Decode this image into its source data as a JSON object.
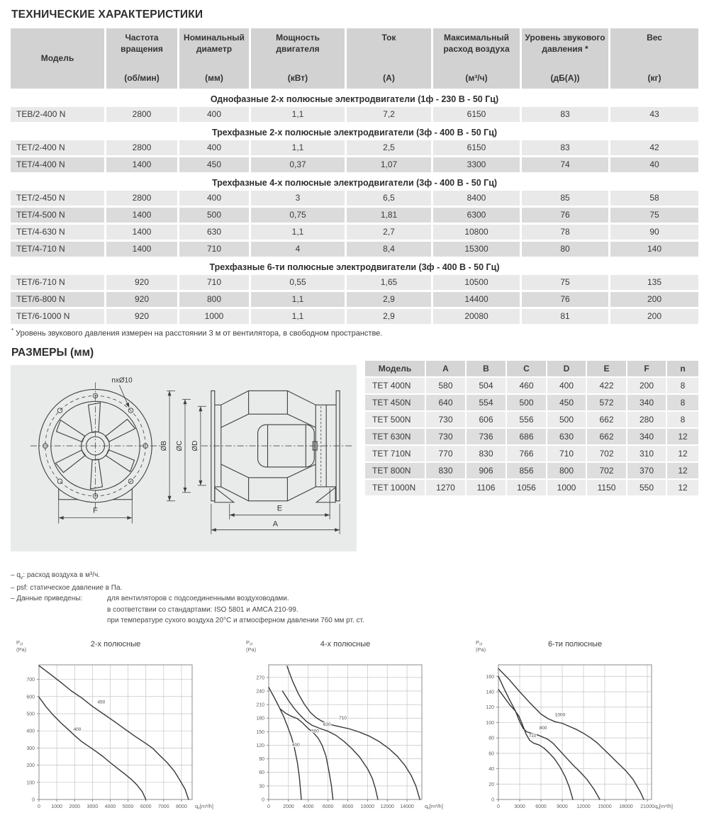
{
  "page": {
    "title": "ТЕХНИЧЕСКИЕ ХАРАКТЕРИСТИКИ",
    "footnote_star": "*",
    "footnote_text": " Уровень звукового давления измерен на расстоянии 3 м от вентилятора, в свободном пространстве.",
    "dimensions_heading": "РАЗМЕРЫ (мм)"
  },
  "spec_table": {
    "headers": [
      {
        "name": "Модель",
        "unit": ""
      },
      {
        "name": "Частота вращения",
        "unit": "(об/мин)"
      },
      {
        "name": "Номинальный диаметр",
        "unit": "(мм)"
      },
      {
        "name": "Мощность двигателя",
        "unit": "(кВт)"
      },
      {
        "name": "Ток",
        "unit": "(А)"
      },
      {
        "name": "Максимальный расход воздуха",
        "unit": "(м³/ч)"
      },
      {
        "name": "Уровень звукового давления *",
        "unit": "(дБ(А))"
      },
      {
        "name": "Вес",
        "unit": "(кг)"
      }
    ],
    "sections": [
      {
        "title": "Однофазные 2-х полюсные электродвигатели (1ф - 230 В - 50 Гц)",
        "rows": [
          [
            "TEB/2-400 N",
            "2800",
            "400",
            "1,1",
            "7,2",
            "6150",
            "83",
            "43"
          ]
        ]
      },
      {
        "title": "Трехфазные 2-х полюсные электродвигатели (3ф - 400 В - 50 Гц)",
        "rows": [
          [
            "TET/2-400 N",
            "2800",
            "400",
            "1,1",
            "2,5",
            "6150",
            "83",
            "42"
          ],
          [
            "TET/4-400 N",
            "1400",
            "450",
            "0,37",
            "1,07",
            "3300",
            "74",
            "40"
          ]
        ]
      },
      {
        "title": "Трехфазные 4-х полюсные электродвигатели (3ф - 400 В - 50 Гц)",
        "rows": [
          [
            "TET/2-450 N",
            "2800",
            "400",
            "3",
            "6,5",
            "8400",
            "85",
            "58"
          ],
          [
            "TET/4-500 N",
            "1400",
            "500",
            "0,75",
            "1,81",
            "6300",
            "76",
            "75"
          ],
          [
            "TET/4-630 N",
            "1400",
            "630",
            "1,1",
            "2,7",
            "10800",
            "78",
            "90"
          ],
          [
            "TET/4-710 N",
            "1400",
            "710",
            "4",
            "8,4",
            "15300",
            "80",
            "140"
          ]
        ]
      },
      {
        "title": "Трехфазные 6-ти полюсные электродвигатели (3ф - 400 В - 50 Гц)",
        "rows": [
          [
            "TET/6-710 N",
            "920",
            "710",
            "0,55",
            "1,65",
            "10500",
            "75",
            "135"
          ],
          [
            "TET/6-800 N",
            "920",
            "800",
            "1,1",
            "2,9",
            "14400",
            "76",
            "200"
          ],
          [
            "TET/6-1000 N",
            "920",
            "1000",
            "1,1",
            "2,9",
            "20080",
            "81",
            "200"
          ]
        ]
      }
    ]
  },
  "dim_table": {
    "headers": [
      "Модель",
      "A",
      "B",
      "C",
      "D",
      "E",
      "F",
      "n"
    ],
    "rows": [
      [
        "TET 400N",
        "580",
        "504",
        "460",
        "400",
        "422",
        "200",
        "8"
      ],
      [
        "TET 450N",
        "640",
        "554",
        "500",
        "450",
        "572",
        "340",
        "8"
      ],
      [
        "TET 500N",
        "730",
        "606",
        "556",
        "500",
        "662",
        "280",
        "8"
      ],
      [
        "TET 630N",
        "730",
        "736",
        "686",
        "630",
        "662",
        "340",
        "12"
      ],
      [
        "TET 710N",
        "770",
        "830",
        "766",
        "710",
        "702",
        "310",
        "12"
      ],
      [
        "TET 800N",
        "830",
        "906",
        "856",
        "800",
        "702",
        "370",
        "12"
      ],
      [
        "TET 1000N",
        "1270",
        "1106",
        "1056",
        "1000",
        "1150",
        "550",
        "12"
      ]
    ]
  },
  "drawing": {
    "labels": {
      "bolt_holes": "nxØ10",
      "dia_b": "ØB",
      "dia_c": "ØC",
      "dia_d": "ØD",
      "dim_e": "E",
      "dim_a": "A",
      "dim_f": "F"
    }
  },
  "notes": {
    "q_prefix": "– q",
    "q_sub": "v",
    "q_rest": ": расход воздуха в м³/ч.",
    "psf_line": "– psf: статическое давление в Па.",
    "given_label": "– Данные приведены:",
    "given_items": [
      "для вентиляторов с подсоединенными воздуховодами.",
      "в соответствии со стандартами: ISO 5801 и AMCA 210-99.",
      "при температуре сухого воздуха 20°С и атмосферном давлении 760 мм рт. ст."
    ]
  },
  "chart_data": [
    {
      "id": "2-pole",
      "type": "line",
      "title": "2-х полюсные",
      "ylabel": "P",
      "ylabel_sub": "sf",
      "ylabel_unit": "(Pa)",
      "xlabel": "q",
      "xlabel_sub": "v",
      "xlabel_unit": "[m³/h]",
      "xlim": [
        0,
        8600
      ],
      "ylim": [
        0,
        785
      ],
      "xticks": [
        0,
        1000,
        2000,
        3000,
        4000,
        5000,
        6000,
        7000,
        8000
      ],
      "yticks": [
        0,
        100,
        200,
        300,
        400,
        500,
        600,
        700
      ],
      "grid": true,
      "legend_position": "on-curve",
      "series": [
        {
          "name": "450",
          "label_at": [
            3500,
            560
          ],
          "points": [
            [
              0,
              780
            ],
            [
              600,
              733
            ],
            [
              1200,
              685
            ],
            [
              1800,
              634
            ],
            [
              2400,
              592
            ],
            [
              3000,
              543
            ],
            [
              3600,
              500
            ],
            [
              4200,
              457
            ],
            [
              4800,
              412
            ],
            [
              5400,
              368
            ],
            [
              6000,
              327
            ],
            [
              6400,
              297
            ],
            [
              6800,
              255
            ],
            [
              7200,
              215
            ],
            [
              7600,
              165
            ],
            [
              7900,
              115
            ],
            [
              8200,
              60
            ],
            [
              8400,
              0
            ]
          ]
        },
        {
          "name": "400",
          "label_at": [
            2150,
            400
          ],
          "points": [
            [
              0,
              597
            ],
            [
              400,
              540
            ],
            [
              800,
              492
            ],
            [
              1200,
              450
            ],
            [
              1600,
              412
            ],
            [
              2000,
              373
            ],
            [
              2400,
              337
            ],
            [
              2800,
              309
            ],
            [
              3200,
              280
            ],
            [
              3600,
              250
            ],
            [
              4000,
              215
            ],
            [
              4400,
              182
            ],
            [
              4800,
              150
            ],
            [
              5200,
              116
            ],
            [
              5500,
              85
            ],
            [
              5800,
              45
            ],
            [
              6000,
              0
            ]
          ]
        }
      ]
    },
    {
      "id": "4-pole",
      "type": "line",
      "title": "4-х полюсные",
      "ylabel": "P",
      "ylabel_sub": "sf",
      "ylabel_unit": "(Pa)",
      "xlabel": "q",
      "xlabel_sub": "v",
      "xlabel_unit": "[m³/h]",
      "xlim": [
        0,
        15500
      ],
      "ylim": [
        0,
        298
      ],
      "xticks": [
        0,
        2000,
        4000,
        6000,
        8000,
        10000,
        12000,
        14000
      ],
      "yticks": [
        0,
        30,
        60,
        90,
        120,
        150,
        180,
        210,
        240,
        270
      ],
      "grid": true,
      "legend_position": "on-curve",
      "series": [
        {
          "name": "710",
          "label_at": [
            7500,
            177
          ],
          "points": [
            [
              1850,
              295
            ],
            [
              2400,
              263
            ],
            [
              3000,
              234
            ],
            [
              3600,
              211
            ],
            [
              4200,
              193
            ],
            [
              4800,
              181
            ],
            [
              5400,
              173
            ],
            [
              6200,
              166
            ],
            [
              7200,
              161
            ],
            [
              8200,
              156
            ],
            [
              9200,
              149
            ],
            [
              10200,
              140
            ],
            [
              11200,
              128
            ],
            [
              12200,
              112
            ],
            [
              13000,
              96
            ],
            [
              13800,
              75
            ],
            [
              14400,
              54
            ],
            [
              14900,
              30
            ],
            [
              15300,
              0
            ]
          ]
        },
        {
          "name": "630",
          "label_at": [
            5900,
            163
          ],
          "points": [
            [
              1400,
              240
            ],
            [
              2000,
              219
            ],
            [
              2600,
              201
            ],
            [
              3200,
              186
            ],
            [
              3800,
              173
            ],
            [
              4400,
              164
            ],
            [
              5200,
              157
            ],
            [
              6000,
              151
            ],
            [
              6800,
              142
            ],
            [
              7600,
              129
            ],
            [
              8400,
              113
            ],
            [
              9200,
              94
            ],
            [
              10000,
              68
            ],
            [
              10500,
              46
            ],
            [
              10800,
              24
            ],
            [
              11050,
              0
            ]
          ]
        },
        {
          "name": "500",
          "label_at": [
            4700,
            148
          ],
          "points": [
            [
              1200,
              200
            ],
            [
              1700,
              191
            ],
            [
              2300,
              184
            ],
            [
              2900,
              179
            ],
            [
              3400,
              170
            ],
            [
              4000,
              157
            ],
            [
              4600,
              146
            ],
            [
              5000,
              136
            ],
            [
              5400,
              120
            ],
            [
              5800,
              96
            ],
            [
              6100,
              62
            ],
            [
              6350,
              30
            ],
            [
              6500,
              0
            ]
          ]
        },
        {
          "name": "400",
          "label_at": [
            2750,
            118
          ],
          "points": [
            [
              0,
              248
            ],
            [
              500,
              228
            ],
            [
              1000,
              207
            ],
            [
              1500,
              184
            ],
            [
              1900,
              162
            ],
            [
              2300,
              138
            ],
            [
              2600,
              115
            ],
            [
              2900,
              82
            ],
            [
              3100,
              50
            ],
            [
              3300,
              0
            ]
          ]
        }
      ]
    },
    {
      "id": "6-pole",
      "type": "line",
      "title": "6-ти полюсные",
      "ylabel": "P",
      "ylabel_sub": "sf",
      "ylabel_unit": "(Pa)",
      "xlabel": "q",
      "xlabel_sub": "v",
      "xlabel_unit": "[m³/h]",
      "xlim": [
        0,
        21600
      ],
      "ylim": [
        0,
        175
      ],
      "xticks": [
        0,
        3000,
        6000,
        9000,
        12000,
        15000,
        18000,
        21000
      ],
      "yticks": [
        0,
        20,
        40,
        60,
        80,
        100,
        120,
        140,
        160
      ],
      "grid": true,
      "legend_position": "on-curve",
      "series": [
        {
          "name": "1000",
          "label_at": [
            8700,
            108
          ],
          "points": [
            [
              0,
              170
            ],
            [
              1500,
              156
            ],
            [
              3000,
              140
            ],
            [
              4500,
              125
            ],
            [
              6000,
              111
            ],
            [
              7000,
              105
            ],
            [
              8000,
              101
            ],
            [
              9000,
              99
            ],
            [
              10000,
              95
            ],
            [
              11000,
              91
            ],
            [
              12000,
              86
            ],
            [
              13000,
              80
            ],
            [
              14000,
              73
            ],
            [
              15000,
              64
            ],
            [
              16000,
              55
            ],
            [
              17000,
              46
            ],
            [
              18000,
              37
            ],
            [
              19000,
              26
            ],
            [
              20000,
              10
            ],
            [
              20500,
              0
            ]
          ]
        },
        {
          "name": "800",
          "label_at": [
            6300,
            91
          ],
          "points": [
            [
              0,
              160
            ],
            [
              800,
              144
            ],
            [
              1600,
              129
            ],
            [
              2400,
              115
            ],
            [
              3000,
              101
            ],
            [
              3500,
              92
            ],
            [
              4000,
              88
            ],
            [
              4700,
              86
            ],
            [
              5500,
              84
            ],
            [
              6300,
              81
            ],
            [
              7000,
              78
            ],
            [
              7700,
              73
            ],
            [
              8500,
              65
            ],
            [
              9500,
              55
            ],
            [
              10500,
              45
            ],
            [
              11500,
              36
            ],
            [
              12500,
              26
            ],
            [
              13500,
              13
            ],
            [
              14300,
              0
            ]
          ]
        },
        {
          "name": "710",
          "label_at": [
            4800,
            81
          ],
          "points": [
            [
              0,
              143
            ],
            [
              800,
              133
            ],
            [
              1600,
              123
            ],
            [
              2300,
              116
            ],
            [
              2900,
              108
            ],
            [
              3400,
              97
            ],
            [
              3900,
              85
            ],
            [
              4400,
              77
            ],
            [
              5000,
              73
            ],
            [
              5700,
              71
            ],
            [
              6400,
              67
            ],
            [
              7100,
              61
            ],
            [
              7900,
              53
            ],
            [
              8700,
              42
            ],
            [
              9400,
              30
            ],
            [
              10000,
              16
            ],
            [
              10500,
              0
            ]
          ]
        }
      ]
    }
  ]
}
